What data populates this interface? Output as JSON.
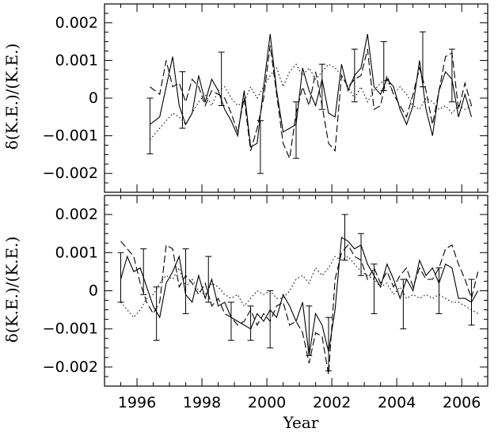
{
  "chart_data": [
    {
      "type": "line",
      "panel": "top",
      "xlabel": "",
      "ylabel": "δ(K.E.)/(K.E.)",
      "xlim": [
        1995,
        2006.8
      ],
      "ylim": [
        -0.0025,
        0.0025
      ],
      "yticks": [
        -0.002,
        -0.001,
        0,
        0.001,
        0.002
      ],
      "ytick_labels": [
        "−0.002",
        "−0.001",
        "0",
        "0.001",
        "0.002"
      ],
      "series": [
        {
          "style": "solid",
          "x": [
            1996.4,
            1996.7,
            1996.9,
            1997.1,
            1997.3,
            1997.5,
            1997.7,
            1997.9,
            1998.1,
            1998.3,
            1998.5,
            1998.7,
            1998.9,
            1999.1,
            1999.3,
            1999.5,
            1999.7,
            1999.9,
            2000.1,
            2000.3,
            2000.5,
            2000.7,
            2000.9,
            2001.1,
            2001.3,
            2001.5,
            2001.7,
            2001.9,
            2002.1,
            2002.3,
            2002.5,
            2002.7,
            2002.9,
            2003.1,
            2003.3,
            2003.5,
            2003.7,
            2003.9,
            2004.1,
            2004.3,
            2004.5,
            2004.7,
            2004.9,
            2005.1,
            2005.3,
            2005.5,
            2005.7,
            2005.9,
            2006.1,
            2006.3
          ],
          "y": [
            -0.0007,
            -0.0005,
            0.0003,
            0.0011,
            -0.0002,
            -0.0007,
            -0.0004,
            0.0006,
            -0.0001,
            0.0005,
            0.0002,
            -0.0003,
            -0.0006,
            -0.001,
            0.0002,
            -0.0013,
            -0.0012,
            0.0003,
            0.0017,
            0.0002,
            -0.0009,
            -0.0008,
            -0.0007,
            0.0008,
            0.0002,
            -0.0002,
            0.0005,
            -0.0004,
            -0.0005,
            0.0009,
            0.0002,
            0.0006,
            0.0008,
            0.0017,
            0.0003,
            0.0001,
            0.0005,
            0.0003,
            -0.0003,
            -0.0007,
            -0.0002,
            0.001,
            -0.0003,
            -0.001,
            0.0002,
            0.0007,
            0.0005,
            -0.0005,
            0.0001,
            -0.0005
          ]
        },
        {
          "style": "dashed",
          "x": [
            1996.4,
            1996.7,
            1996.9,
            1997.1,
            1997.3,
            1997.5,
            1997.7,
            1997.9,
            1998.1,
            1998.3,
            1998.5,
            1998.7,
            1998.9,
            1999.1,
            1999.3,
            1999.5,
            1999.7,
            1999.9,
            2000.1,
            2000.3,
            2000.5,
            2000.7,
            2000.9,
            2001.1,
            2001.3,
            2001.5,
            2001.7,
            2001.9,
            2002.1,
            2002.3,
            2002.5,
            2002.7,
            2002.9,
            2003.1,
            2003.3,
            2003.5,
            2003.7,
            2003.9,
            2004.1,
            2004.3,
            2004.5,
            2004.7,
            2004.9,
            2005.1,
            2005.3,
            2005.5,
            2005.7,
            2005.9,
            2006.1,
            2006.3
          ],
          "y": [
            0.0003,
            0.0001,
            0.001,
            0.0003,
            0.0004,
            -0.0001,
            0.0005,
            0.0003,
            -0.0002,
            0.0002,
            0.0001,
            0.0,
            -0.0004,
            -0.0009,
            0.0,
            -0.0014,
            -0.0008,
            0.0,
            0.0014,
            0.0001,
            -0.0012,
            -0.0016,
            -0.0004,
            0.0003,
            -0.0002,
            0.0007,
            -0.0002,
            -0.0012,
            -0.0014,
            0.0006,
            0.0003,
            0.0005,
            0.0006,
            0.0013,
            -0.0003,
            -0.0002,
            0.0006,
            0.0001,
            -0.0002,
            -0.0005,
            0.0001,
            0.0008,
            0.0002,
            -0.0007,
            0.0002,
            0.0011,
            0.0012,
            -0.0003,
            0.0004,
            -0.0002
          ]
        },
        {
          "style": "dotted",
          "x": [
            1996.4,
            1996.7,
            1996.9,
            1997.1,
            1997.3,
            1997.5,
            1997.7,
            1997.9,
            1998.1,
            1998.3,
            1998.5,
            1998.7,
            1998.9,
            1999.1,
            1999.3,
            1999.5,
            1999.7,
            1999.9,
            2000.1,
            2000.3,
            2000.5,
            2000.7,
            2000.9,
            2001.1,
            2001.3,
            2001.5,
            2001.7,
            2001.9,
            2002.1,
            2002.3,
            2002.5,
            2002.7,
            2002.9,
            2003.1,
            2003.3,
            2003.5,
            2003.7,
            2003.9,
            2004.1,
            2004.3,
            2004.5,
            2004.7,
            2004.9,
            2005.1,
            2005.3,
            2005.5,
            2005.7,
            2005.9,
            2006.1,
            2006.3
          ],
          "y": [
            -0.0011,
            -0.0008,
            -0.0006,
            -0.0004,
            -0.0005,
            -0.0007,
            -0.0004,
            -0.0001,
            0.0001,
            -0.0002,
            0.0002,
            0.0003,
            0.0,
            -0.0002,
            -0.0001,
            0.0003,
            0.0,
            0.0003,
            0.0006,
            0.0008,
            0.0003,
            0.0007,
            0.0009,
            0.0006,
            0.0008,
            0.0005,
            0.0007,
            0.0009,
            0.0008,
            0.0006,
            0.0003,
            0.0,
            0.0003,
            -0.0001,
            0.0002,
            0.0004,
            0.0005,
            0.0001,
            0.0003,
            0.0001,
            -0.0002,
            -0.0003,
            0.0,
            -0.0001,
            -0.0003,
            -0.0002,
            -0.0004,
            -0.0002,
            -0.0003,
            -0.0002
          ]
        }
      ],
      "errorbars": [
        {
          "x": 1996.4,
          "low": -0.00148,
          "high": 0.0
        },
        {
          "x": 1997.4,
          "low": -0.0008,
          "high": 0.0007
        },
        {
          "x": 1998.6,
          "low": -0.0002,
          "high": 0.00122
        },
        {
          "x": 1999.8,
          "low": -0.002,
          "high": -0.0006
        },
        {
          "x": 2000.9,
          "low": -0.0016,
          "high": -0.0001
        },
        {
          "x": 2001.7,
          "low": -0.0003,
          "high": 0.0009
        },
        {
          "x": 2002.7,
          "low": -0.0001,
          "high": 0.0013
        },
        {
          "x": 2003.6,
          "low": 0.0002,
          "high": 0.0015
        },
        {
          "x": 2004.8,
          "low": 0.0003,
          "high": 0.00176
        },
        {
          "x": 2005.7,
          "low": -0.0001,
          "high": 0.0013
        }
      ]
    },
    {
      "type": "line",
      "panel": "bottom",
      "xlabel": "Year",
      "ylabel": "δ(K.E.)/(K.E.)",
      "xlim": [
        1995,
        2006.8
      ],
      "ylim": [
        -0.0025,
        0.0025
      ],
      "yticks": [
        -0.002,
        -0.001,
        0,
        0.001,
        0.002
      ],
      "ytick_labels": [
        "−0.002",
        "−0.001",
        "0",
        "0.001",
        "0.002"
      ],
      "xticks": [
        1996,
        1998,
        2000,
        2002,
        2004,
        2006
      ],
      "xtick_labels": [
        "1996",
        "1998",
        "2000",
        "2002",
        "2004",
        "2006"
      ],
      "series": [
        {
          "style": "solid",
          "x": [
            1995.5,
            1995.7,
            1995.9,
            1996.1,
            1996.3,
            1996.5,
            1996.7,
            1996.9,
            1997.1,
            1997.3,
            1997.5,
            1997.7,
            1997.9,
            1998.1,
            1998.3,
            1998.5,
            1998.7,
            1998.9,
            1999.1,
            1999.3,
            1999.5,
            1999.7,
            1999.9,
            2000.1,
            2000.3,
            2000.5,
            2000.7,
            2000.9,
            2001.1,
            2001.3,
            2001.5,
            2001.7,
            2001.9,
            2002.1,
            2002.3,
            2002.5,
            2002.7,
            2002.9,
            2003.1,
            2003.3,
            2003.5,
            2003.7,
            2003.9,
            2004.1,
            2004.3,
            2004.5,
            2004.7,
            2004.9,
            2005.1,
            2005.3,
            2005.5,
            2005.7,
            2005.9,
            2006.1,
            2006.3,
            2006.5
          ],
          "y": [
            0.0003,
            0.0009,
            0.0005,
            0.0006,
            0.0001,
            -0.0004,
            -0.0007,
            0.0002,
            0.0005,
            0.0009,
            -0.0001,
            -0.0003,
            0.0004,
            -0.0002,
            0.0003,
            -0.0004,
            -0.0003,
            -0.0007,
            -0.0008,
            -0.0009,
            -0.001,
            -0.0006,
            -0.0008,
            -0.0005,
            -0.0007,
            -0.0001,
            -0.0004,
            -0.0008,
            -0.0003,
            -0.0017,
            -0.0006,
            -0.0009,
            -0.0016,
            -0.0005,
            0.0014,
            0.0013,
            0.0011,
            0.0012,
            0.0007,
            0.0004,
            0.0001,
            0.0007,
            0.0003,
            -0.0002,
            0.0003,
            0.0,
            0.0008,
            0.0004,
            0.0006,
            0.0002,
            0.0007,
            0.0006,
            -0.0002,
            -0.0002,
            -0.0003,
            0.0
          ],
          "stroke_width": 1.6
        },
        {
          "style": "dashed",
          "x": [
            1995.5,
            1995.7,
            1995.9,
            1996.1,
            1996.3,
            1996.5,
            1996.7,
            1996.9,
            1997.1,
            1997.3,
            1997.5,
            1997.7,
            1997.9,
            1998.1,
            1998.3,
            1998.5,
            1998.7,
            1998.9,
            1999.1,
            1999.3,
            1999.5,
            1999.7,
            1999.9,
            2000.1,
            2000.3,
            2000.5,
            2000.7,
            2000.9,
            2001.1,
            2001.3,
            2001.5,
            2001.7,
            2001.9,
            2002.1,
            2002.3,
            2002.5,
            2002.7,
            2002.9,
            2003.1,
            2003.3,
            2003.5,
            2003.7,
            2003.9,
            2004.1,
            2004.3,
            2004.5,
            2004.7,
            2004.9,
            2005.1,
            2005.3,
            2005.5,
            2005.7,
            2005.9,
            2006.1,
            2006.3,
            2006.5
          ],
          "y": [
            0.0013,
            0.0011,
            0.0009,
            0.0002,
            -0.0003,
            -0.0006,
            -0.0003,
            0.0012,
            0.0011,
            0.0001,
            0.0004,
            0.0002,
            -0.0001,
            0.0002,
            -0.0004,
            -0.0002,
            -0.0006,
            -0.0007,
            -0.0009,
            -0.0008,
            -0.0005,
            -0.0009,
            -0.0006,
            -0.0008,
            -0.0004,
            -0.0003,
            -0.0009,
            -0.0008,
            -0.0011,
            -0.0019,
            -0.0011,
            -0.0012,
            -0.0022,
            0.0003,
            0.001,
            0.0012,
            0.0009,
            0.0008,
            0.0003,
            0.0006,
            0.0002,
            0.0005,
            0.0001,
            0.0004,
            0.0006,
            0.0001,
            0.0006,
            0.0003,
            0.0003,
            0.0006,
            0.0011,
            0.0012,
            0.0007,
            0.0003,
            -0.0002,
            0.0005
          ]
        },
        {
          "style": "dotted",
          "x": [
            1995.5,
            1995.7,
            1995.9,
            1996.1,
            1996.3,
            1996.5,
            1996.7,
            1996.9,
            1997.1,
            1997.3,
            1997.5,
            1997.7,
            1997.9,
            1998.1,
            1998.3,
            1998.5,
            1998.7,
            1998.9,
            1999.1,
            1999.3,
            1999.5,
            1999.7,
            1999.9,
            2000.1,
            2000.3,
            2000.5,
            2000.7,
            2000.9,
            2001.1,
            2001.3,
            2001.5,
            2001.7,
            2001.9,
            2002.1,
            2002.3,
            2002.5,
            2002.7,
            2002.9,
            2003.1,
            2003.3,
            2003.5,
            2003.7,
            2003.9,
            2004.1,
            2004.3,
            2004.5,
            2004.7,
            2004.9,
            2005.1,
            2005.3,
            2005.5,
            2005.7,
            2005.9,
            2006.1,
            2006.3,
            2006.5
          ],
          "y": [
            -0.0003,
            -0.0005,
            -0.0007,
            -0.0005,
            -0.0002,
            -0.0001,
            0.0002,
            0.0004,
            0.0003,
            0.0006,
            0.0001,
            0.0003,
            0.0,
            -0.0001,
            0.0002,
            0.0001,
            -0.0001,
            -0.0002,
            -0.0001,
            -0.0004,
            -0.0002,
            0.0,
            -0.0001,
            0.0,
            -0.0002,
            -0.0002,
            0.0,
            0.0003,
            0.0004,
            0.0002,
            0.0006,
            0.0004,
            0.0006,
            0.0009,
            0.0008,
            0.0009,
            0.0007,
            0.0005,
            0.0004,
            0.0003,
            0.0001,
            0.0002,
            -0.0001,
            0.0001,
            -0.0002,
            -0.0001,
            -0.0002,
            -0.0001,
            -0.0002,
            -0.0001,
            -0.0002,
            -0.0003,
            -0.0003,
            -0.0004,
            -0.0005,
            -0.0006
          ]
        }
      ],
      "errorbars": [
        {
          "x": 1995.5,
          "low": -0.0003,
          "high": 0.001
        },
        {
          "x": 1996.2,
          "low": -0.0001,
          "high": 0.0011
        },
        {
          "x": 1996.6,
          "low": -0.0013,
          "high": 0.0001
        },
        {
          "x": 1997.5,
          "low": -0.0006,
          "high": 0.0011
        },
        {
          "x": 1998.2,
          "low": -0.0003,
          "high": 0.0009
        },
        {
          "x": 1998.9,
          "low": -0.0013,
          "high": -0.0003
        },
        {
          "x": 1999.5,
          "low": -0.0013,
          "high": -0.0004
        },
        {
          "x": 2000.1,
          "low": -0.0015,
          "high": 0.0
        },
        {
          "x": 2001.3,
          "low": -0.0017,
          "high": -0.0004
        },
        {
          "x": 2001.9,
          "low": -0.0021,
          "high": -0.0007
        },
        {
          "x": 2002.4,
          "low": 0.0008,
          "high": 0.002
        },
        {
          "x": 2002.9,
          "low": 0.0004,
          "high": 0.0015
        },
        {
          "x": 2003.3,
          "low": -0.0006,
          "high": 0.0007
        },
        {
          "x": 2004.2,
          "low": -0.001,
          "high": 0.0003
        },
        {
          "x": 2005.3,
          "low": -0.0006,
          "high": 0.0006
        },
        {
          "x": 2006.3,
          "low": -0.0009,
          "high": 0.0003
        }
      ]
    }
  ]
}
